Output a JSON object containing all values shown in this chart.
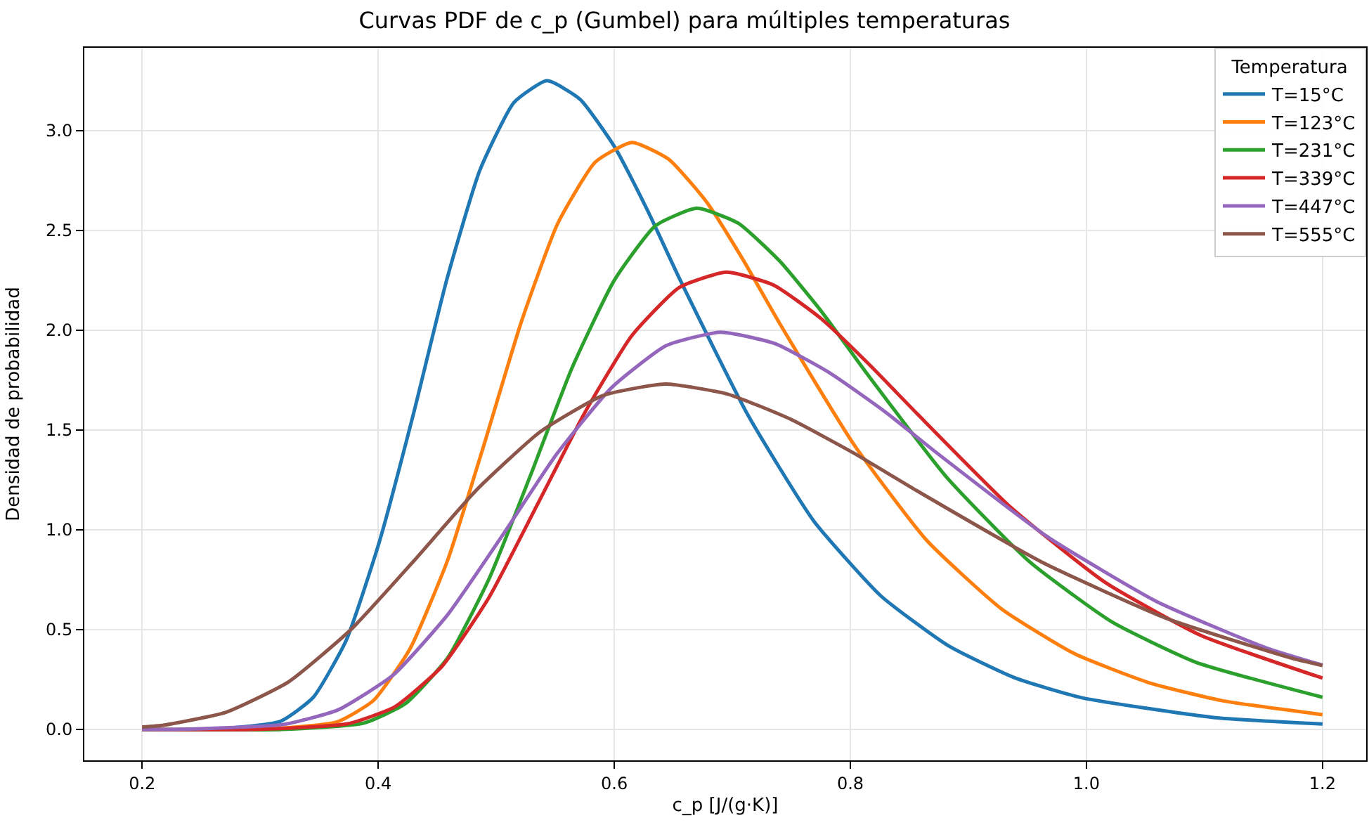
{
  "chart_data": {
    "type": "line",
    "title": "Curvas PDF de c_p (Gumbel) para múltiples temperaturas",
    "xlabel": "c_p [J/(g·K)]",
    "ylabel": "Densidad de probabilidad",
    "legend_title": "Temperatura",
    "xlim": [
      0.151,
      1.237
    ],
    "ylim": [
      -0.155,
      3.415
    ],
    "xticks": [
      {
        "value": 0.2,
        "label": "0.2"
      },
      {
        "value": 0.4,
        "label": "0.4"
      },
      {
        "value": 0.6,
        "label": "0.6"
      },
      {
        "value": 0.8,
        "label": "0.8"
      },
      {
        "value": 1.0,
        "label": "1.0"
      },
      {
        "value": 1.2,
        "label": "1.2"
      }
    ],
    "yticks": [
      {
        "value": 0,
        "label": "0.0"
      },
      {
        "value": 0.5,
        "label": "0.5"
      },
      {
        "value": 1.0,
        "label": "1.0"
      },
      {
        "value": 1.5,
        "label": "1.5"
      },
      {
        "value": 2.0,
        "label": "2.0"
      },
      {
        "value": 2.5,
        "label": "2.5"
      },
      {
        "value": 3.0,
        "label": "3.0"
      }
    ],
    "grid": true,
    "legend": "top right",
    "marker": "none",
    "line_style": "solid",
    "series": [
      {
        "name": "T=15°C",
        "color": "#1f77b4",
        "x": [
          0.2,
          0.26,
          0.317,
          0.345,
          0.373,
          0.401,
          0.43,
          0.458,
          0.486,
          0.515,
          0.543,
          0.571,
          0.6,
          0.628,
          0.656,
          0.713,
          0.769,
          0.826,
          0.883,
          0.939,
          0.996,
          1.109,
          1.2
        ],
        "values": [
          0,
          0,
          0.04,
          0.161,
          0.448,
          0.941,
          1.585,
          2.252,
          2.8,
          3.141,
          3.25,
          3.157,
          2.921,
          2.602,
          2.249,
          1.577,
          1.044,
          0.668,
          0.419,
          0.259,
          0.159,
          0.059,
          0.027
        ]
      },
      {
        "name": "T=123°C",
        "color": "#ff7f0e",
        "x": [
          0.2,
          0.302,
          0.365,
          0.396,
          0.427,
          0.459,
          0.49,
          0.521,
          0.552,
          0.584,
          0.615,
          0.646,
          0.678,
          0.709,
          0.74,
          0.803,
          0.865,
          0.928,
          0.99,
          1.053,
          1.115,
          1.2
        ],
        "values": [
          0,
          0,
          0.037,
          0.145,
          0.405,
          0.851,
          1.434,
          2.038,
          2.534,
          2.843,
          2.941,
          2.857,
          2.644,
          2.354,
          2.035,
          1.427,
          0.945,
          0.604,
          0.379,
          0.234,
          0.144,
          0.074
        ]
      },
      {
        "name": "T=231°C",
        "color": "#2ca02c",
        "x": [
          0.2,
          0.318,
          0.388,
          0.423,
          0.459,
          0.494,
          0.529,
          0.564,
          0.6,
          0.635,
          0.67,
          0.705,
          0.74,
          0.776,
          0.811,
          0.881,
          0.952,
          1.022,
          1.093,
          1.2
        ],
        "values": [
          0,
          0,
          0.032,
          0.129,
          0.36,
          0.756,
          1.273,
          1.809,
          2.25,
          2.524,
          2.611,
          2.536,
          2.347,
          2.09,
          1.807,
          1.267,
          0.839,
          0.537,
          0.336,
          0.161
        ]
      },
      {
        "name": "T=339°C",
        "color": "#d62728",
        "x": [
          0.2,
          0.294,
          0.374,
          0.414,
          0.454,
          0.494,
          0.534,
          0.575,
          0.615,
          0.655,
          0.695,
          0.735,
          0.775,
          0.815,
          0.856,
          0.936,
          1.016,
          1.097,
          1.2
        ],
        "values": [
          0,
          0,
          0.028,
          0.113,
          0.316,
          0.663,
          1.117,
          1.587,
          1.974,
          2.214,
          2.291,
          2.226,
          2.059,
          1.834,
          1.585,
          1.112,
          0.736,
          0.471,
          0.257
        ]
      },
      {
        "name": "T=447°C",
        "color": "#9467bd",
        "x": [
          0.2,
          0.228,
          0.32,
          0.366,
          0.413,
          0.459,
          0.505,
          0.551,
          0.598,
          0.644,
          0.69,
          0.736,
          0.782,
          0.829,
          0.875,
          0.967,
          1.06,
          1.152,
          1.2
        ],
        "values": [
          0,
          0,
          0.025,
          0.098,
          0.274,
          0.576,
          0.97,
          1.378,
          1.714,
          1.923,
          1.99,
          1.933,
          1.788,
          1.593,
          1.377,
          0.965,
          0.639,
          0.409,
          0.322
        ]
      },
      {
        "name": "T=555°C",
        "color": "#8c564b",
        "x": [
          0.2,
          0.218,
          0.271,
          0.324,
          0.377,
          0.43,
          0.483,
          0.537,
          0.59,
          0.643,
          0.696,
          0.749,
          0.803,
          0.856,
          0.962,
          1.068,
          1.175,
          1.2
        ],
        "values": [
          0.012,
          0.021,
          0.086,
          0.238,
          0.501,
          0.843,
          1.198,
          1.49,
          1.672,
          1.73,
          1.68,
          1.555,
          1.384,
          1.197,
          0.839,
          0.556,
          0.355,
          0.32
        ]
      }
    ]
  }
}
